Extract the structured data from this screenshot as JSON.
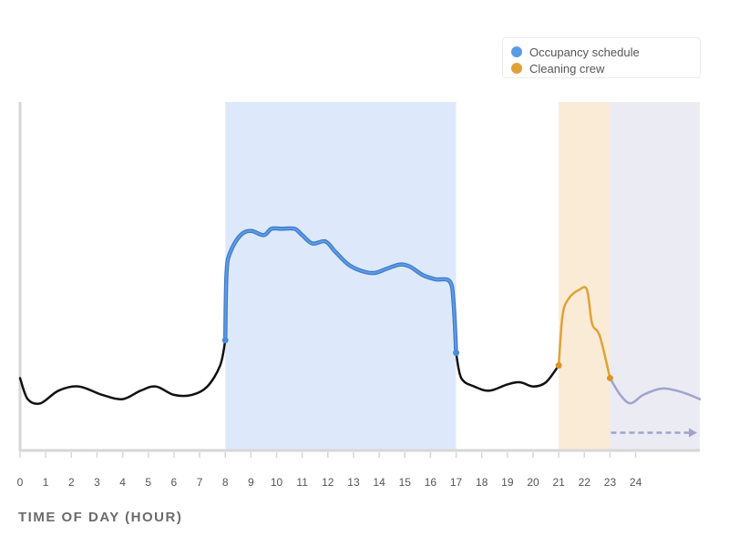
{
  "chart_data": {
    "type": "line",
    "title": "",
    "xlabel": "TIME OF DAY (HOUR)",
    "ylabel": "",
    "xlim": [
      0,
      26.5
    ],
    "ylim": [
      0,
      1
    ],
    "x_ticks": [
      "0",
      "1",
      "2",
      "3",
      "4",
      "5",
      "6",
      "7",
      "8",
      "9",
      "10",
      "11",
      "12",
      "13",
      "14",
      "15",
      "16",
      "17",
      "18",
      "19",
      "20",
      "21",
      "22",
      "23",
      "24"
    ],
    "legend": {
      "placement": "top-right",
      "entries": [
        {
          "label": "Occupancy schedule",
          "color": "#5b9be6"
        },
        {
          "label": "Cleaning crew",
          "color": "#e0a136"
        }
      ]
    },
    "bands": [
      {
        "from": 8,
        "to": 17,
        "color": "#dde9fb"
      },
      {
        "from": 21,
        "to": 23,
        "color": "#f9ebd6"
      },
      {
        "from": 23,
        "to": 26.5,
        "color": "#ebebf4"
      }
    ],
    "series": [
      {
        "segment": "base",
        "color": "#111111",
        "points": [
          [
            0,
            0.17
          ],
          [
            0.3,
            0.12
          ],
          [
            0.8,
            0.11
          ],
          [
            1.5,
            0.14
          ],
          [
            2.3,
            0.15
          ],
          [
            3.2,
            0.13
          ],
          [
            4,
            0.12
          ],
          [
            4.7,
            0.14
          ],
          [
            5.3,
            0.15
          ],
          [
            6,
            0.13
          ],
          [
            6.7,
            0.13
          ],
          [
            7.3,
            0.15
          ],
          [
            7.8,
            0.2
          ],
          [
            8,
            0.26
          ]
        ]
      },
      {
        "segment": "occupancy",
        "color": "#5b9be6",
        "points": [
          [
            8,
            0.26
          ],
          [
            8.05,
            0.42
          ],
          [
            8.2,
            0.47
          ],
          [
            8.6,
            0.51
          ],
          [
            9,
            0.52
          ],
          [
            9.5,
            0.51
          ],
          [
            9.8,
            0.525
          ],
          [
            10.2,
            0.525
          ],
          [
            10.7,
            0.525
          ],
          [
            11,
            0.51
          ],
          [
            11.4,
            0.49
          ],
          [
            11.9,
            0.495
          ],
          [
            12.3,
            0.47
          ],
          [
            12.8,
            0.44
          ],
          [
            13.3,
            0.425
          ],
          [
            13.8,
            0.42
          ],
          [
            14.3,
            0.43
          ],
          [
            14.8,
            0.44
          ],
          [
            15.2,
            0.435
          ],
          [
            15.7,
            0.415
          ],
          [
            16.2,
            0.405
          ],
          [
            16.75,
            0.4
          ],
          [
            16.9,
            0.35
          ],
          [
            17,
            0.23
          ]
        ]
      },
      {
        "segment": "base",
        "color": "#111111",
        "points": [
          [
            17,
            0.23
          ],
          [
            17.2,
            0.17
          ],
          [
            17.7,
            0.15
          ],
          [
            18.3,
            0.14
          ],
          [
            19,
            0.155
          ],
          [
            19.5,
            0.16
          ],
          [
            20,
            0.15
          ],
          [
            20.5,
            0.16
          ],
          [
            21,
            0.2
          ]
        ]
      },
      {
        "segment": "cleaning",
        "color": "#e0a136",
        "points": [
          [
            21,
            0.2
          ],
          [
            21.15,
            0.32
          ],
          [
            21.4,
            0.36
          ],
          [
            21.8,
            0.38
          ],
          [
            22.1,
            0.38
          ],
          [
            22.3,
            0.3
          ],
          [
            22.6,
            0.27
          ],
          [
            23,
            0.17
          ]
        ]
      },
      {
        "segment": "forecast",
        "color": "#9fa3cc",
        "points": [
          [
            23,
            0.17
          ],
          [
            23.4,
            0.13
          ],
          [
            23.8,
            0.11
          ],
          [
            24.3,
            0.13
          ],
          [
            25,
            0.145
          ],
          [
            25.6,
            0.14
          ],
          [
            26.1,
            0.13
          ],
          [
            26.5,
            0.12
          ]
        ]
      }
    ],
    "markers": [
      {
        "x": 8,
        "y": 0.26,
        "color": "#4a8bdc"
      },
      {
        "x": 17,
        "y": 0.23,
        "color": "#4a8bdc"
      },
      {
        "x": 21,
        "y": 0.2,
        "color": "#d9952a"
      },
      {
        "x": 23,
        "y": 0.17,
        "color": "#d9952a"
      }
    ],
    "arrow": {
      "from": 23,
      "to": 26.5,
      "y": 0.04,
      "color": "#9fa3cc",
      "style": "dashed"
    },
    "grid": false
  }
}
